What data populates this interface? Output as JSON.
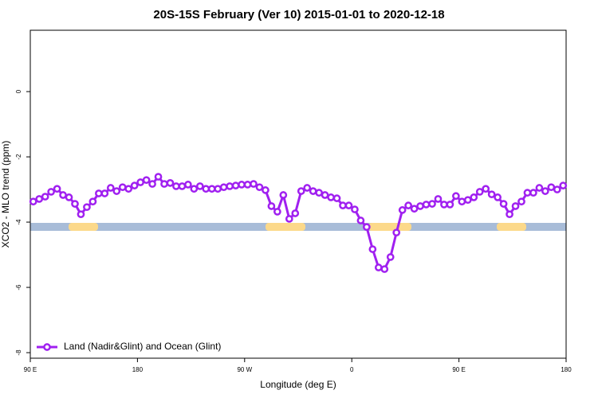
{
  "chart_data": {
    "type": "line",
    "title": "20S-15S February (Ver 10)   2015-01-01 to 2020-12-18",
    "x_label": "Longitude (deg E)",
    "y_label": "XCO2 - MLO trend (ppm)",
    "x": [
      -267.5,
      -262.5,
      -257.5,
      -252.5,
      -247.5,
      -242.5,
      -237.5,
      -232.5,
      -227.5,
      -222.5,
      -217.5,
      -212.5,
      -207.5,
      -202.5,
      -197.5,
      -192.5,
      -187.5,
      -182.5,
      -177.5,
      -172.5,
      -167.5,
      -162.5,
      -157.5,
      -152.5,
      -147.5,
      -142.5,
      -137.5,
      -132.5,
      -127.5,
      -122.5,
      -117.5,
      -112.5,
      -107.5,
      -102.5,
      -97.5,
      -92.5,
      -87.5,
      -82.5,
      -77.5,
      -72.5,
      -67.5,
      -62.5,
      -57.5,
      -52.5,
      -47.5,
      -42.5,
      -37.5,
      -32.5,
      -27.5,
      -22.5,
      -17.5,
      -12.5,
      -7.5,
      -2.5,
      2.5,
      7.5,
      12.5,
      17.5,
      22.5,
      27.5,
      32.5,
      37.5,
      42.5,
      47.5,
      52.5,
      57.5,
      62.5,
      67.5,
      72.5,
      77.5,
      82.5,
      87.5,
      92.5,
      97.5,
      102.5,
      107.5,
      112.5,
      117.5,
      122.5,
      127.5,
      132.5,
      137.5,
      142.5,
      147.5,
      152.5,
      157.5,
      162.5,
      167.5,
      172.5,
      177.5
    ],
    "series": [
      {
        "name": "Land (Nadir&Glint) and Ocean (Glint)",
        "color": "#a020f0",
        "values": [
          -3.37,
          -3.29,
          -3.22,
          -3.07,
          -2.98,
          -3.17,
          -3.24,
          -3.44,
          -3.76,
          -3.54,
          -3.37,
          -3.12,
          -3.12,
          -2.95,
          -3.05,
          -2.93,
          -2.98,
          -2.88,
          -2.78,
          -2.71,
          -2.83,
          -2.61,
          -2.83,
          -2.8,
          -2.9,
          -2.9,
          -2.85,
          -2.98,
          -2.9,
          -2.98,
          -2.98,
          -2.98,
          -2.93,
          -2.9,
          -2.88,
          -2.85,
          -2.85,
          -2.83,
          -2.93,
          -3.02,
          -3.51,
          -3.68,
          -3.17,
          -3.9,
          -3.73,
          -3.05,
          -2.95,
          -3.05,
          -3.1,
          -3.17,
          -3.24,
          -3.27,
          -3.49,
          -3.49,
          -3.61,
          -3.95,
          -4.15,
          -4.83,
          -5.39,
          -5.44,
          -5.07,
          -4.32,
          -3.63,
          -3.49,
          -3.59,
          -3.51,
          -3.46,
          -3.44,
          -3.29,
          -3.46,
          -3.46,
          -3.2,
          -3.37,
          -3.32,
          -3.24,
          -3.07,
          -2.98,
          -3.15,
          -3.24,
          -3.44,
          -3.76,
          -3.51,
          -3.37,
          -3.1,
          -3.1,
          -2.95,
          -3.05,
          -2.93,
          -3.0,
          -2.88
        ]
      }
    ],
    "xlim": [
      -270,
      180
    ],
    "xticks": [
      {
        "value": -270,
        "label": "90 E"
      },
      {
        "value": -180,
        "label": "180"
      },
      {
        "value": -90,
        "label": "90 W"
      },
      0,
      {
        "value": 90,
        "label": "90 E"
      },
      {
        "value": 180,
        "label": "180"
      }
    ],
    "ylim": [
      -8.17,
      1.88
    ],
    "yticks": [
      0,
      -2,
      -4,
      -6,
      -8
    ],
    "legend": "bottom left"
  }
}
